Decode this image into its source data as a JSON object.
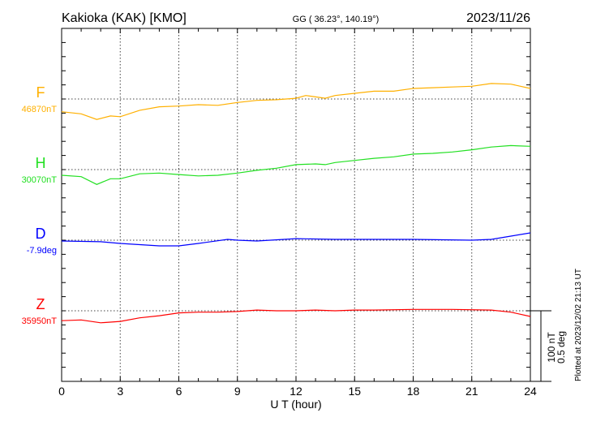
{
  "chart_data": {
    "type": "line",
    "title": "Kakioka (KAK)  [KMO]",
    "subtitle": "GG ( 36.23°, 140.19°)",
    "date": "2023/11/26",
    "xlabel": "U T (hour)",
    "xlim": [
      0,
      24
    ],
    "xticks": [
      "0",
      "3",
      "6",
      "9",
      "12",
      "15",
      "18",
      "21",
      "24"
    ],
    "grid": true,
    "scale_bar": {
      "nT": 100,
      "deg": 0.5,
      "label_nt": "100 nT",
      "label_deg": "0.5 deg"
    },
    "footer": "Plotted at 2023/12/02 21:13 UT",
    "series": [
      {
        "name": "F",
        "baseline": 46870,
        "baseline_label": "46870nT",
        "unit": "nT",
        "color": "#ffb000",
        "x": [
          0,
          1,
          1.8,
          2.5,
          3,
          4,
          5,
          6,
          7,
          8,
          9,
          10,
          11,
          12,
          12.5,
          13,
          13.5,
          14,
          15,
          16,
          17,
          18,
          19,
          20,
          21,
          22,
          23,
          24
        ],
        "y": [
          46852,
          46849,
          46841,
          46846,
          46845,
          46854,
          46859,
          46860,
          46862,
          46861,
          46865,
          46868,
          46869,
          46871,
          46875,
          46873,
          46871,
          46875,
          46878,
          46881,
          46881,
          46885,
          46886,
          46887,
          46888,
          46892,
          46891,
          46885
        ]
      },
      {
        "name": "H",
        "baseline": 30070,
        "baseline_label": "30070nT",
        "unit": "nT",
        "color": "#22e022",
        "x": [
          0,
          1,
          1.8,
          2.5,
          3,
          4,
          5,
          6,
          7,
          8,
          9,
          10,
          11,
          12,
          13,
          13.5,
          14,
          15,
          16,
          17,
          18,
          19,
          20,
          21,
          22,
          23,
          24
        ],
        "y": [
          30062,
          30060,
          30049,
          30057,
          30057,
          30064,
          30065,
          30063,
          30061,
          30062,
          30065,
          30069,
          30072,
          30077,
          30078,
          30077,
          30080,
          30083,
          30086,
          30088,
          30092,
          30093,
          30095,
          30098,
          30102,
          30104,
          30103
        ]
      },
      {
        "name": "D",
        "baseline": -7.9,
        "baseline_label": "-7.9deg",
        "unit": "deg",
        "color": "#0000ff",
        "x": [
          0,
          2,
          3,
          5,
          6,
          7,
          8.5,
          9,
          10,
          12,
          14,
          18,
          21,
          22,
          23,
          24
        ],
        "y": [
          -7.906,
          -7.911,
          -7.923,
          -7.94,
          -7.94,
          -7.923,
          -7.894,
          -7.9,
          -7.906,
          -7.889,
          -7.894,
          -7.894,
          -7.9,
          -7.894,
          -7.871,
          -7.848
        ]
      },
      {
        "name": "Z",
        "baseline": 35950,
        "baseline_label": "35950nT",
        "unit": "nT",
        "color": "#ff0000",
        "x": [
          0,
          1,
          2,
          3,
          4,
          5,
          6,
          7,
          8,
          9,
          10,
          11,
          12,
          13,
          14,
          15,
          16,
          18,
          20,
          22,
          23,
          24
        ],
        "y": [
          35936,
          35937,
          35933,
          35935,
          35940,
          35943,
          35947,
          35948,
          35948,
          35949,
          35951,
          35950,
          35950,
          35951,
          35950,
          35951,
          35951,
          35952,
          35952,
          35951,
          35948,
          35942
        ]
      }
    ]
  }
}
